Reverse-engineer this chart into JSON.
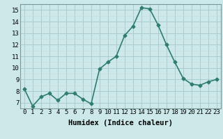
{
  "xlabel": "Humidex (Indice chaleur)",
  "x": [
    0,
    1,
    2,
    3,
    4,
    5,
    6,
    7,
    8,
    9,
    10,
    11,
    12,
    13,
    14,
    15,
    16,
    17,
    18,
    19,
    20,
    21,
    22,
    23
  ],
  "y": [
    8.2,
    6.7,
    7.5,
    7.8,
    7.2,
    7.8,
    7.8,
    7.3,
    6.9,
    9.9,
    10.5,
    11.0,
    12.8,
    13.6,
    15.2,
    15.1,
    13.7,
    12.0,
    10.5,
    9.1,
    8.6,
    8.5,
    8.8,
    9.0
  ],
  "ylim": [
    6.5,
    15.5
  ],
  "yticks": [
    7,
    8,
    9,
    10,
    11,
    12,
    13,
    14,
    15
  ],
  "xlim": [
    -0.5,
    23.5
  ],
  "line_color": "#2e7d6e",
  "bg_color": "#cce8e8",
  "grid_major_color": "#aacccc",
  "grid_minor_color": "#c0dddd",
  "marker": "D",
  "marker_size": 2.5,
  "line_width": 1.2,
  "tick_fontsize": 6.5,
  "xlabel_fontsize": 7.5
}
